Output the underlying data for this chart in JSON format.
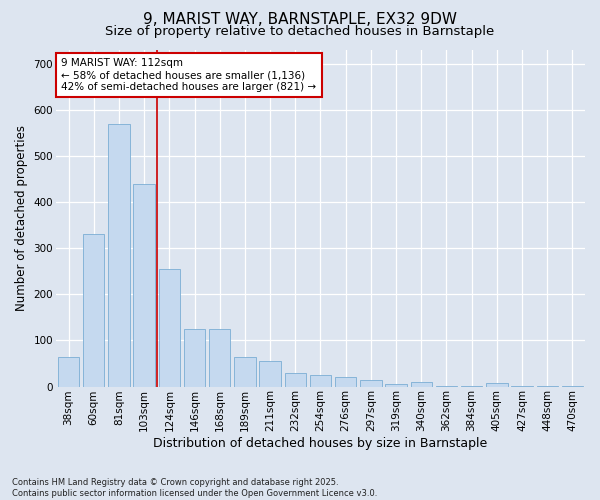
{
  "title": "9, MARIST WAY, BARNSTAPLE, EX32 9DW",
  "subtitle": "Size of property relative to detached houses in Barnstaple",
  "xlabel": "Distribution of detached houses by size in Barnstaple",
  "ylabel": "Number of detached properties",
  "categories": [
    "38sqm",
    "60sqm",
    "81sqm",
    "103sqm",
    "124sqm",
    "146sqm",
    "168sqm",
    "189sqm",
    "211sqm",
    "232sqm",
    "254sqm",
    "276sqm",
    "297sqm",
    "319sqm",
    "340sqm",
    "362sqm",
    "384sqm",
    "405sqm",
    "427sqm",
    "448sqm",
    "470sqm"
  ],
  "values": [
    65,
    330,
    570,
    440,
    255,
    125,
    125,
    65,
    55,
    30,
    25,
    20,
    15,
    5,
    10,
    1,
    1,
    8,
    1,
    1,
    1
  ],
  "bar_color": "#c5d9ef",
  "bar_edge_color": "#7badd4",
  "background_color": "#dde5f0",
  "grid_color": "#ffffff",
  "annotation_text": "9 MARIST WAY: 112sqm\n← 58% of detached houses are smaller (1,136)\n42% of semi-detached houses are larger (821) →",
  "annotation_box_color": "#ffffff",
  "annotation_box_edge": "#cc0000",
  "vline_color": "#cc0000",
  "vline_pos": 3.5,
  "ylim": [
    0,
    730
  ],
  "yticks": [
    0,
    100,
    200,
    300,
    400,
    500,
    600,
    700
  ],
  "footer": "Contains HM Land Registry data © Crown copyright and database right 2025.\nContains public sector information licensed under the Open Government Licence v3.0.",
  "title_fontsize": 11,
  "subtitle_fontsize": 9.5,
  "xlabel_fontsize": 9,
  "ylabel_fontsize": 8.5,
  "tick_fontsize": 7.5,
  "annotation_fontsize": 7.5,
  "footer_fontsize": 6
}
